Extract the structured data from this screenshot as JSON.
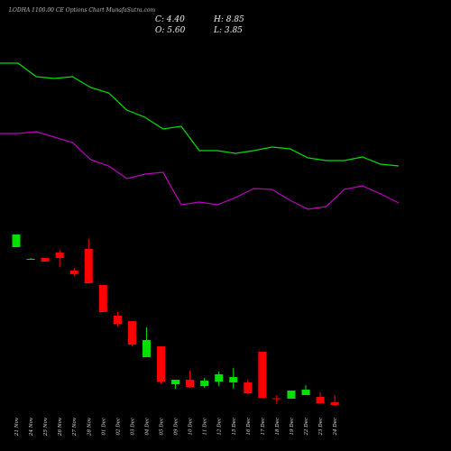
{
  "chart_data": {
    "type": "candlestick",
    "title": "LODHA 1100.00 CE Options Chart MunafaSutra.com",
    "summary": {
      "close": "C: 4.40",
      "high": "H: 8.85",
      "open": "O: 5.60",
      "low": "L: 3.85"
    },
    "categories": [
      "21 Nov",
      "24 Nov",
      "25 Nov",
      "26 Nov",
      "27 Nov",
      "28 Nov",
      "01 Dec",
      "02 Dec",
      "03 Dec",
      "04 Dec",
      "05 Dec",
      "09 Dec",
      "10 Dec",
      "11 Dec",
      "12 Dec",
      "15 Dec",
      "16 Dec",
      "17 Dec",
      "18 Dec",
      "19 Dec",
      "22 Dec",
      "23 Dec",
      "24 Dec"
    ],
    "open": [
      74.4,
      69.2,
      69.6,
      72,
      64,
      73.6,
      57.6,
      44,
      41.6,
      25.6,
      30.4,
      13.6,
      15.6,
      12.8,
      14.8,
      14.4,
      14.4,
      28,
      7.4,
      7.2,
      8.8,
      8,
      5.6
    ],
    "high": [
      80,
      69.6,
      69.6,
      73.2,
      65.2,
      78,
      57.6,
      45.6,
      41.6,
      38.8,
      30.4,
      15.6,
      19.6,
      16.4,
      19.2,
      20.8,
      15.6,
      28,
      8.8,
      10.8,
      13.2,
      10,
      8.85
    ],
    "low": [
      74.4,
      68.8,
      68,
      65.6,
      61.6,
      58.4,
      45.6,
      39.2,
      30.4,
      25.6,
      14,
      11.6,
      12,
      12,
      12.8,
      11.6,
      9.2,
      7.6,
      4.8,
      7.2,
      8.8,
      5.2,
      3.85
    ],
    "close": [
      80,
      69.2,
      68,
      69.6,
      62.4,
      58.4,
      45.6,
      40.4,
      31.2,
      33.2,
      14.8,
      15.6,
      12.4,
      15.2,
      18,
      16.8,
      9.6,
      7.6,
      7.0,
      10.8,
      11.2,
      5.2,
      4.4
    ],
    "up_color": "#00e000",
    "down_color": "#ff0000",
    "ylim": [
      0,
      84
    ],
    "y2lim": [
      0,
      100
    ],
    "series": [
      {
        "type": "line",
        "axis": "y2",
        "color": "#00e000",
        "values": [
          90,
          90,
          82.5,
          81.5,
          82.5,
          76.5,
          73.5,
          64,
          60,
          53.5,
          55,
          41.5,
          41.5,
          40,
          41.5,
          43.5,
          42.5,
          37.5,
          36,
          36,
          38,
          34,
          33
        ]
      },
      {
        "type": "line",
        "axis": "y2",
        "color": "#c000c0",
        "values": [
          51,
          51,
          52,
          49,
          46,
          36.5,
          33,
          26,
          28.5,
          29.5,
          11.5,
          13,
          11.5,
          15.5,
          20.5,
          20,
          14,
          9,
          10.5,
          20,
          22,
          17.5,
          12.5
        ]
      }
    ]
  }
}
